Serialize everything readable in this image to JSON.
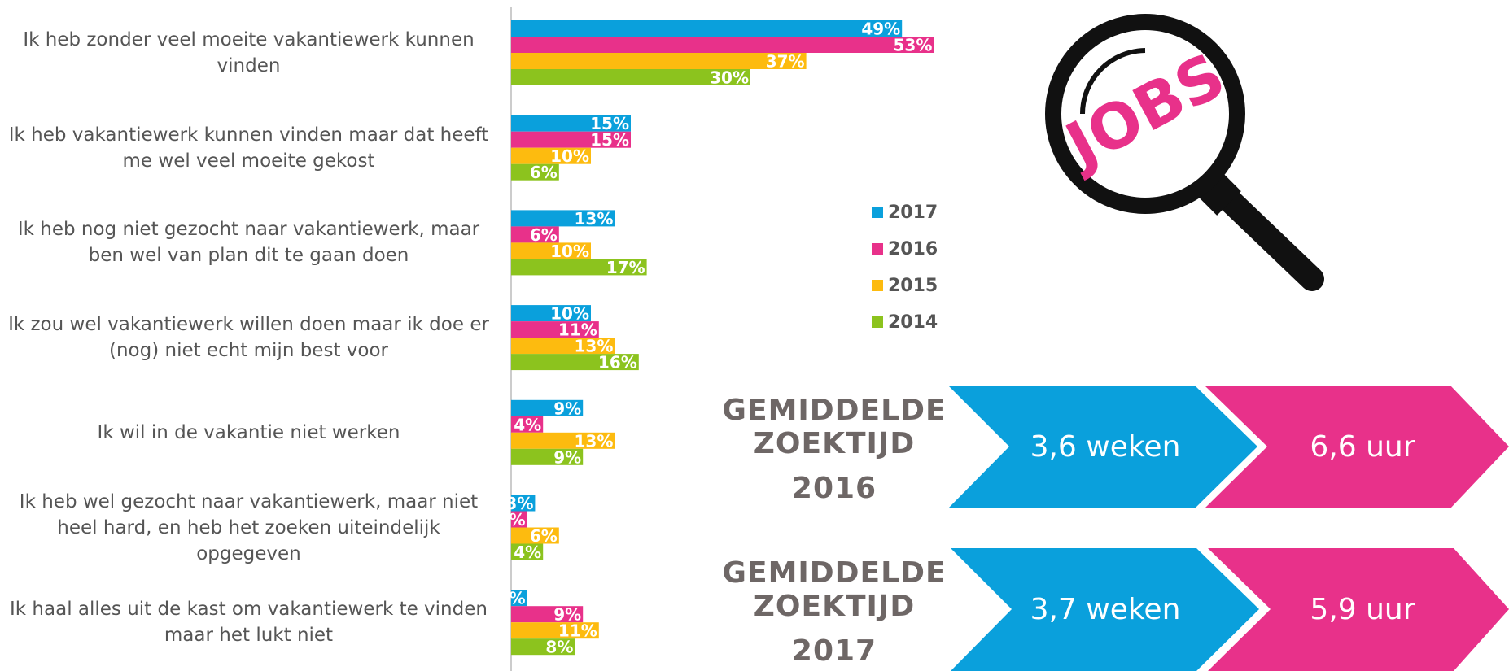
{
  "chart_data": {
    "type": "hbar",
    "categories": [
      "Ik heb zonder veel moeite vakantiewerk kunnen vinden",
      "Ik heb vakantiewerk kunnen vinden maar dat heeft me wel veel moeite gekost",
      "Ik heb nog niet gezocht naar vakantiewerk, maar ben wel van plan dit te gaan doen",
      "Ik zou wel vakantiewerk willen doen maar ik doe er (nog) niet echt mijn best voor",
      "Ik wil in de vakantie niet werken",
      "Ik heb wel gezocht naar vakantiewerk, maar niet heel hard, en heb het zoeken uiteindelijk opgegeven",
      "Ik haal alles uit de kast om vakantiewerk te vinden maar het lukt niet"
    ],
    "series": [
      {
        "name": "2017",
        "color": "#0aa0dc",
        "values": [
          49,
          15,
          13,
          10,
          9,
          3,
          2
        ],
        "value_labels": [
          "49%",
          "15%",
          "13%",
          "10%",
          "9%",
          "3%",
          "2%"
        ]
      },
      {
        "name": "2016",
        "color": "#e8318a",
        "values": [
          53,
          15,
          6,
          11,
          4,
          2,
          9
        ],
        "value_labels": [
          "53%",
          "15%",
          "6%",
          "11%",
          "4%",
          "2%",
          "9%"
        ]
      },
      {
        "name": "2015",
        "color": "#fdbb0f",
        "values": [
          37,
          10,
          10,
          13,
          13,
          6,
          11
        ],
        "value_labels": [
          "37%",
          "10%",
          "10%",
          "13%",
          "13%",
          "6%",
          "11%"
        ]
      },
      {
        "name": "2014",
        "color": "#8cc31e",
        "values": [
          30,
          6,
          17,
          16,
          9,
          4,
          8
        ],
        "value_labels": [
          "30%",
          "6%",
          "17%",
          "16%",
          "9%",
          "4%",
          "8%"
        ]
      }
    ],
    "xlim": [
      0,
      100
    ]
  },
  "icon": {
    "text": "JOBS"
  },
  "panels": [
    {
      "title_lines": [
        "GEMIDDELDE",
        "ZOEKTIJD"
      ],
      "year": "2016",
      "weeks": "3,6 weken",
      "hours": "6,6 uur"
    },
    {
      "title_lines": [
        "GEMIDDELDE",
        "ZOEKTIJD"
      ],
      "year": "2017",
      "weeks": "3,7 weken",
      "hours": "5,9 uur"
    }
  ]
}
